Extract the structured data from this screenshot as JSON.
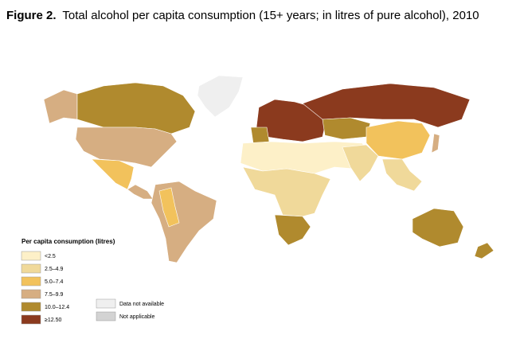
{
  "header": {
    "figure": "Figure 2.",
    "title": "Total alcohol per capita consumption (15+ years; in litres of pure alcohol), 2010"
  },
  "legend": {
    "title": "Per capita consumption (litres)",
    "items": [
      {
        "label": "<2.5",
        "color": "#fdf0c8"
      },
      {
        "label": "2.5–4.9",
        "color": "#f0d99a"
      },
      {
        "label": "5.0–7.4",
        "color": "#f2c25c"
      },
      {
        "label": "7.5–9.9",
        "color": "#d6ae82"
      },
      {
        "label": "10.0–12.4",
        "color": "#b08a2e"
      },
      {
        "label": "≥12.50",
        "color": "#8b3a1e"
      }
    ],
    "other": [
      {
        "label": "Data not available",
        "color": "#efefef"
      },
      {
        "label": "Not applicable",
        "color": "#d3d3d3"
      }
    ]
  }
}
